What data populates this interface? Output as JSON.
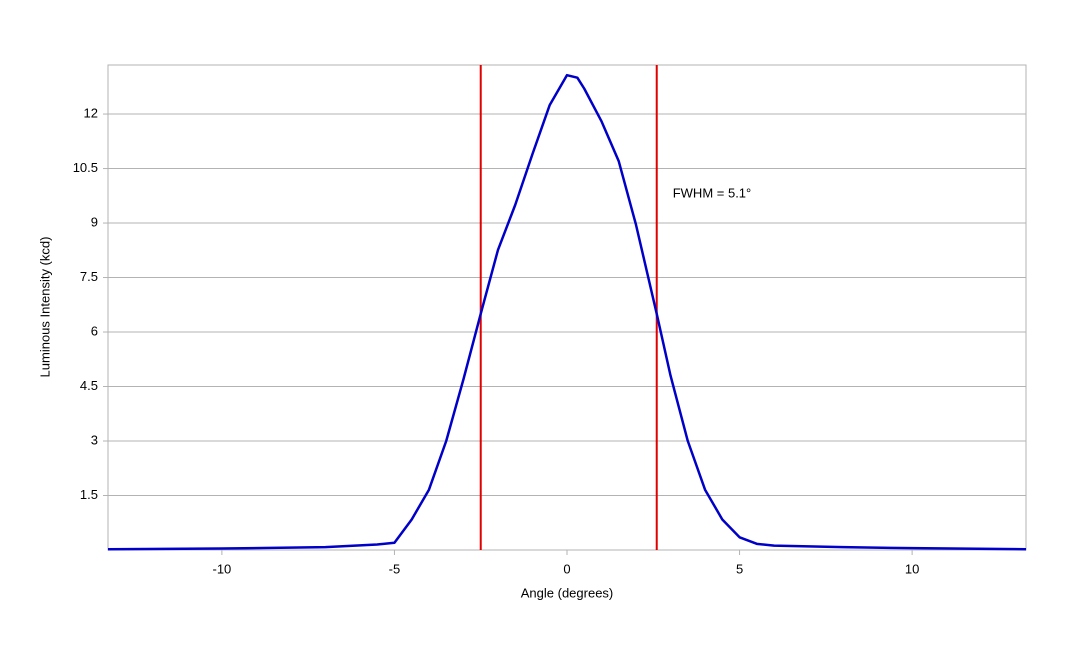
{
  "chart_data": {
    "type": "line",
    "x_label": "Angle (degrees)",
    "y_label": "Luminous Intensity (kcd)",
    "annotation": "FWHM = 5.1°",
    "series": [
      {
        "name": "Luminous Intensity",
        "color": "#0000c8",
        "x": [
          -13.3,
          -10,
          -7,
          -5.5,
          -5,
          -4.5,
          -4,
          -3.5,
          -3,
          -2.5,
          -2,
          -1.5,
          -1,
          -0.5,
          0,
          0.3,
          0.5,
          1,
          1.5,
          2,
          2.6,
          3,
          3.5,
          4,
          4.5,
          5,
          5.5,
          6,
          8,
          10,
          13.3
        ],
        "values": [
          0.02,
          0.04,
          0.08,
          0.15,
          0.2,
          0.84,
          1.66,
          3.0,
          4.7,
          6.5,
          8.26,
          9.5,
          10.9,
          12.25,
          13.07,
          13.0,
          12.7,
          11.8,
          10.7,
          8.95,
          6.5,
          4.8,
          3.0,
          1.66,
          0.84,
          0.35,
          0.17,
          0.12,
          0.08,
          0.05,
          0.02
        ]
      }
    ],
    "vlines": [
      {
        "x": -2.5,
        "color": "#e00000"
      },
      {
        "x": 2.6,
        "color": "#e00000"
      }
    ],
    "xlim": [
      -13.3,
      13.3
    ],
    "xticks": [
      -10,
      -5,
      0,
      5,
      10
    ],
    "ylim": [
      0,
      13.35
    ],
    "yticks": [
      1.5,
      3,
      4.5,
      6,
      7.5,
      9,
      10.5,
      12
    ],
    "grid": true
  }
}
